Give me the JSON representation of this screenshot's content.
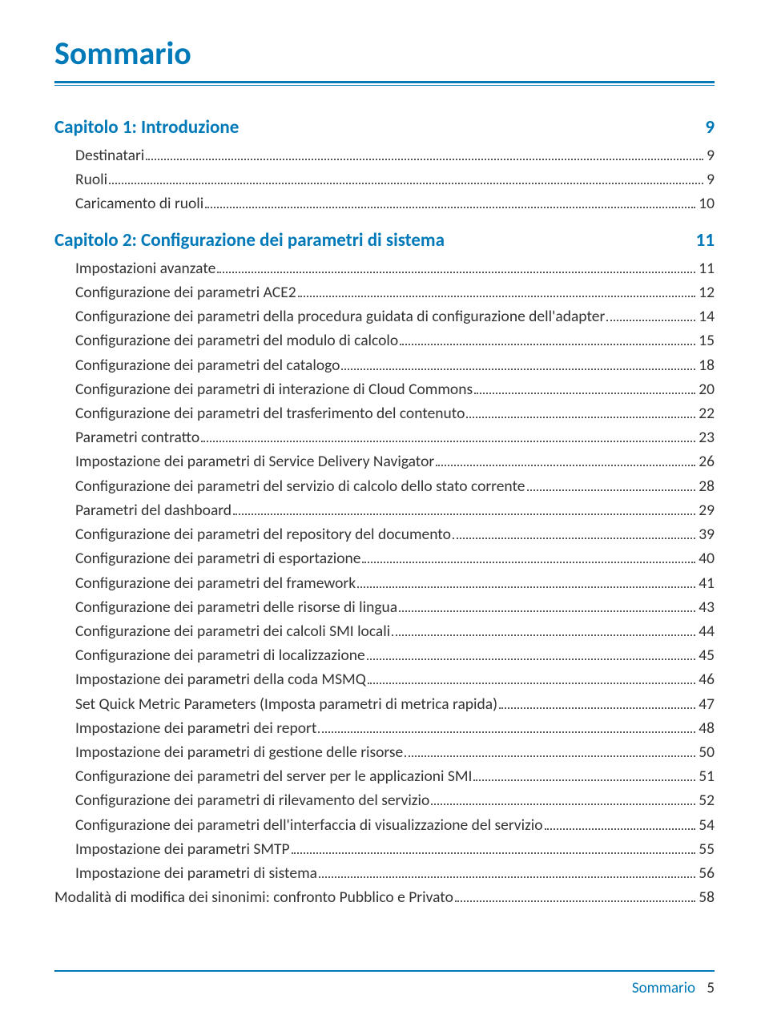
{
  "colors": {
    "accent": "#0079b8",
    "text": "#333333",
    "leader": "#555555"
  },
  "title": "Sommario",
  "footer": {
    "label": "Sommario",
    "page": "5"
  },
  "toc": [
    {
      "type": "chapter",
      "label": "Capitolo 1: Introduzione",
      "page": "9"
    },
    {
      "type": "entry",
      "level": 1,
      "label": "Destinatari",
      "page": "9"
    },
    {
      "type": "entry",
      "level": 1,
      "label": "Ruoli",
      "page": "9"
    },
    {
      "type": "entry",
      "level": 1,
      "label": "Caricamento di ruoli",
      "page": "10"
    },
    {
      "type": "chapter",
      "label": "Capitolo 2: Configurazione dei parametri di sistema",
      "page": "11"
    },
    {
      "type": "entry",
      "level": 1,
      "label": "Impostazioni avanzate",
      "page": "11"
    },
    {
      "type": "entry",
      "level": 1,
      "label": "Configurazione dei parametri ACE2",
      "page": "12"
    },
    {
      "type": "entry",
      "level": 1,
      "label": "Configurazione dei parametri della procedura guidata di configurazione dell'adapter",
      "page": "14"
    },
    {
      "type": "entry",
      "level": 1,
      "label": "Configurazione dei parametri del modulo di calcolo",
      "page": "15"
    },
    {
      "type": "entry",
      "level": 1,
      "label": "Configurazione dei parametri del catalogo",
      "page": "18"
    },
    {
      "type": "entry",
      "level": 1,
      "label": "Configurazione dei parametri di interazione di Cloud Commons",
      "page": "20"
    },
    {
      "type": "entry",
      "level": 1,
      "label": "Configurazione dei parametri del trasferimento del contenuto",
      "page": "22"
    },
    {
      "type": "entry",
      "level": 1,
      "label": "Parametri contratto",
      "page": "23"
    },
    {
      "type": "entry",
      "level": 1,
      "label": "Impostazione dei parametri di Service Delivery Navigator",
      "page": "26"
    },
    {
      "type": "entry",
      "level": 1,
      "label": "Configurazione dei parametri del servizio di calcolo dello stato corrente",
      "page": "28"
    },
    {
      "type": "entry",
      "level": 1,
      "label": "Parametri del dashboard",
      "page": "29"
    },
    {
      "type": "entry",
      "level": 1,
      "label": "Configurazione dei parametri del repository del documento",
      "page": "39"
    },
    {
      "type": "entry",
      "level": 1,
      "label": "Configurazione dei parametri di esportazione",
      "page": "40"
    },
    {
      "type": "entry",
      "level": 1,
      "label": "Configurazione dei parametri del framework",
      "page": "41"
    },
    {
      "type": "entry",
      "level": 1,
      "label": "Configurazione dei parametri delle risorse di lingua",
      "page": "43"
    },
    {
      "type": "entry",
      "level": 1,
      "label": "Configurazione dei parametri dei calcoli SMI locali",
      "page": "44"
    },
    {
      "type": "entry",
      "level": 1,
      "label": "Configurazione dei parametri di localizzazione",
      "page": "45"
    },
    {
      "type": "entry",
      "level": 1,
      "label": "Impostazione dei parametri della coda MSMQ",
      "page": "46"
    },
    {
      "type": "entry",
      "level": 1,
      "label": "Set Quick Metric Parameters (Imposta parametri di metrica rapida)",
      "page": "47"
    },
    {
      "type": "entry",
      "level": 1,
      "label": "Impostazione dei parametri dei report",
      "page": "48"
    },
    {
      "type": "entry",
      "level": 1,
      "label": "Impostazione dei parametri di gestione delle risorse",
      "page": "50"
    },
    {
      "type": "entry",
      "level": 1,
      "label": "Configurazione dei parametri del server per le applicazioni SMI",
      "page": "51"
    },
    {
      "type": "entry",
      "level": 1,
      "label": "Configurazione dei parametri di rilevamento del servizio",
      "page": "52"
    },
    {
      "type": "entry",
      "level": 1,
      "label": "Configurazione dei parametri dell'interfaccia di visualizzazione del servizio",
      "page": "54"
    },
    {
      "type": "entry",
      "level": 1,
      "label": "Impostazione dei parametri SMTP",
      "page": "55"
    },
    {
      "type": "entry",
      "level": 1,
      "label": "Impostazione dei parametri di sistema",
      "page": "56"
    },
    {
      "type": "entry",
      "level": 0,
      "label": "Modalità di modifica dei sinonimi: confronto Pubblico e Privato",
      "page": "58"
    }
  ]
}
